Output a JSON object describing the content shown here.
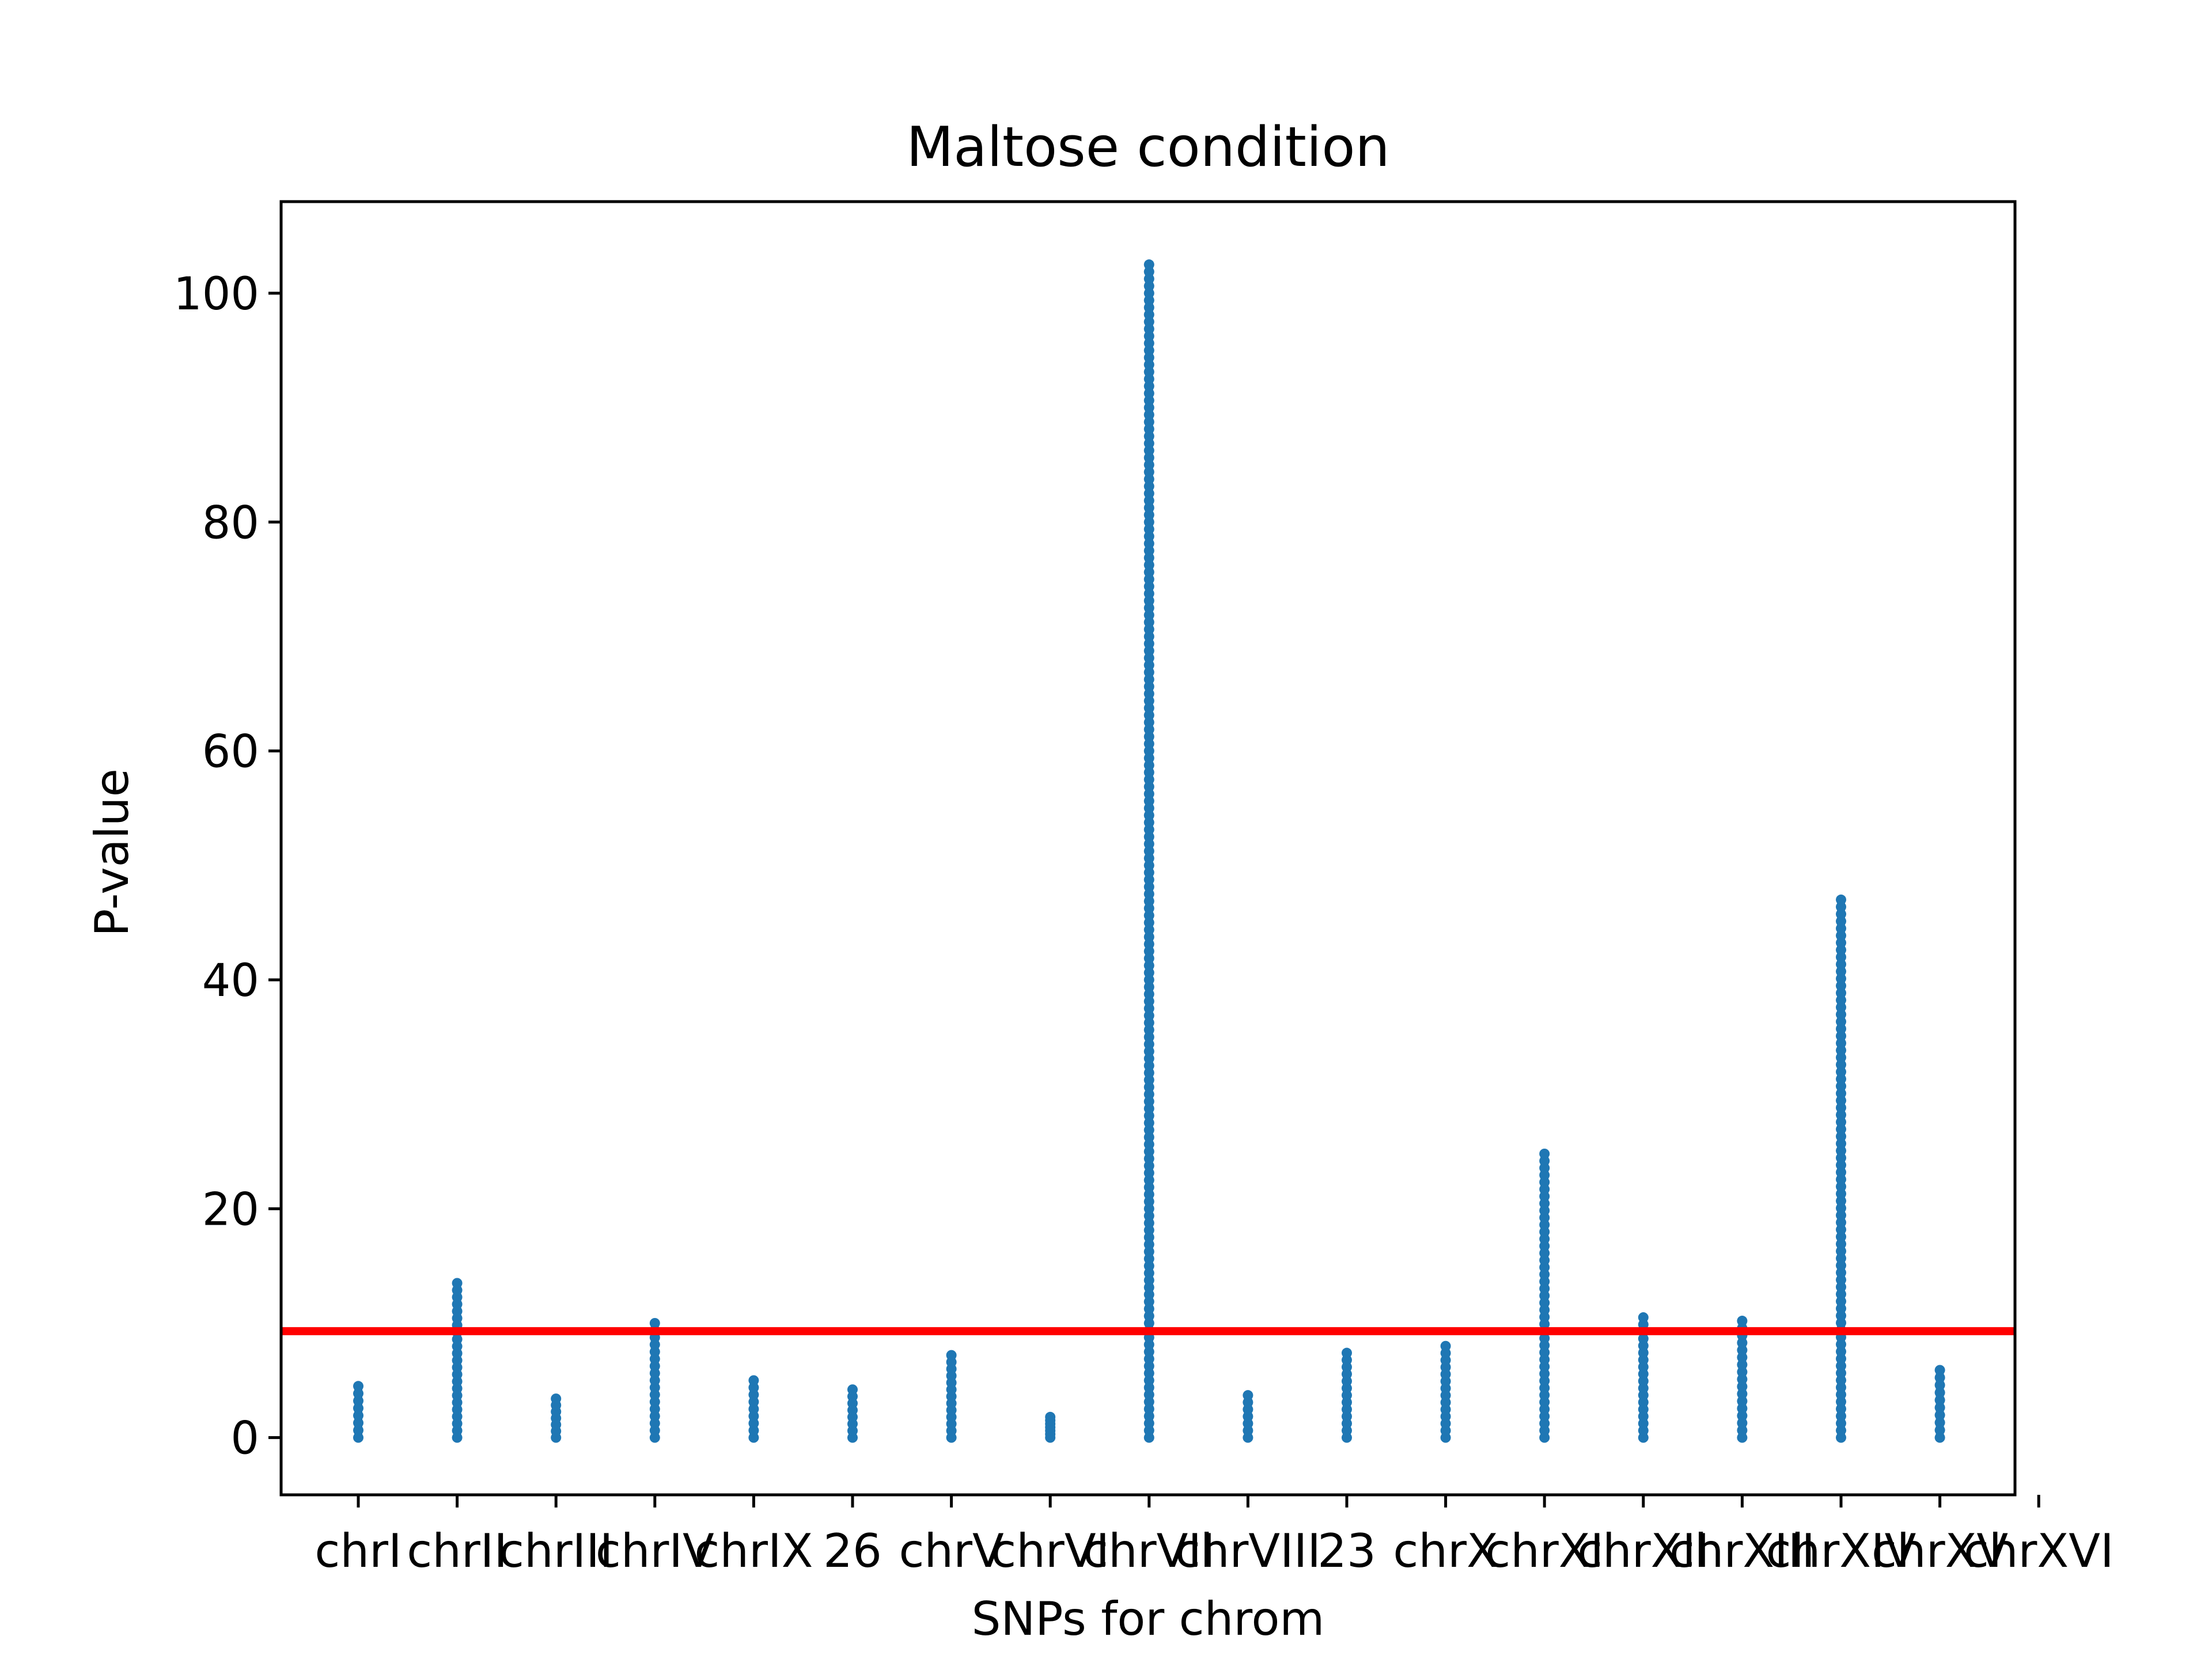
{
  "chart_data": {
    "type": "scatter",
    "title": "Maltose condition",
    "xlabel": "SNPs for chrom",
    "ylabel": "P-value",
    "ylim": [
      -5,
      108
    ],
    "yticks": [
      0,
      20,
      40,
      60,
      80,
      100
    ],
    "grid": false,
    "categories": [
      "chrI",
      "chrII",
      "chrIII",
      "chrIV",
      "chrIX",
      "26",
      "chrV",
      "chrVI",
      "chrVII",
      "chrVIII",
      "23",
      "chrX",
      "chrXI",
      "chrXII",
      "chrXIII",
      "chrXIV",
      "chrXV",
      "chrXVI"
    ],
    "visible_tick_categories": [
      "chrI",
      "chrII",
      "chrIII",
      "chrIV",
      "chrIX",
      "26",
      "chrV",
      "chrVI",
      "chrVII",
      "chrVIII",
      "23",
      "chrX",
      "chrXI",
      "chrXII",
      "chrXIII",
      "chrXIV",
      "chrXV",
      "chrXVI"
    ],
    "series": [
      {
        "color": "#1f77b4",
        "points_per_category": [
          {
            "category": "chrI",
            "min": 0,
            "max": 4.5
          },
          {
            "category": "chrII",
            "min": 0,
            "max": 13.5
          },
          {
            "category": "chrIII",
            "min": 0,
            "max": 3.4
          },
          {
            "category": "chrIV",
            "min": 0,
            "max": 10.0
          },
          {
            "category": "chrIX",
            "min": 0,
            "max": 5.0
          },
          {
            "category": "26",
            "min": 0,
            "max": 4.2
          },
          {
            "category": "chrV",
            "min": 0,
            "max": 7.2
          },
          {
            "category": "chrVI",
            "min": 0,
            "max": 1.8
          },
          {
            "category": "chrVII",
            "min": 0,
            "max": 102.5
          },
          {
            "category": "chrVIII",
            "min": 0,
            "max": 3.7
          },
          {
            "category": "23",
            "min": 0,
            "max": 7.4
          },
          {
            "category": "chrX",
            "min": 0,
            "max": 8.0
          },
          {
            "category": "chrXI",
            "min": 0,
            "max": 24.8
          },
          {
            "category": "chrXII",
            "min": 0,
            "max": 10.5
          },
          {
            "category": "chrXIII",
            "min": 0,
            "max": 10.2
          },
          {
            "category": "chrXIV",
            "min": 0,
            "max": 47.0
          },
          {
            "category": "chrXV",
            "min": 0,
            "max": 5.9
          }
        ]
      }
    ],
    "threshold_line": {
      "value": 9.3,
      "color": "#ff0000"
    }
  }
}
